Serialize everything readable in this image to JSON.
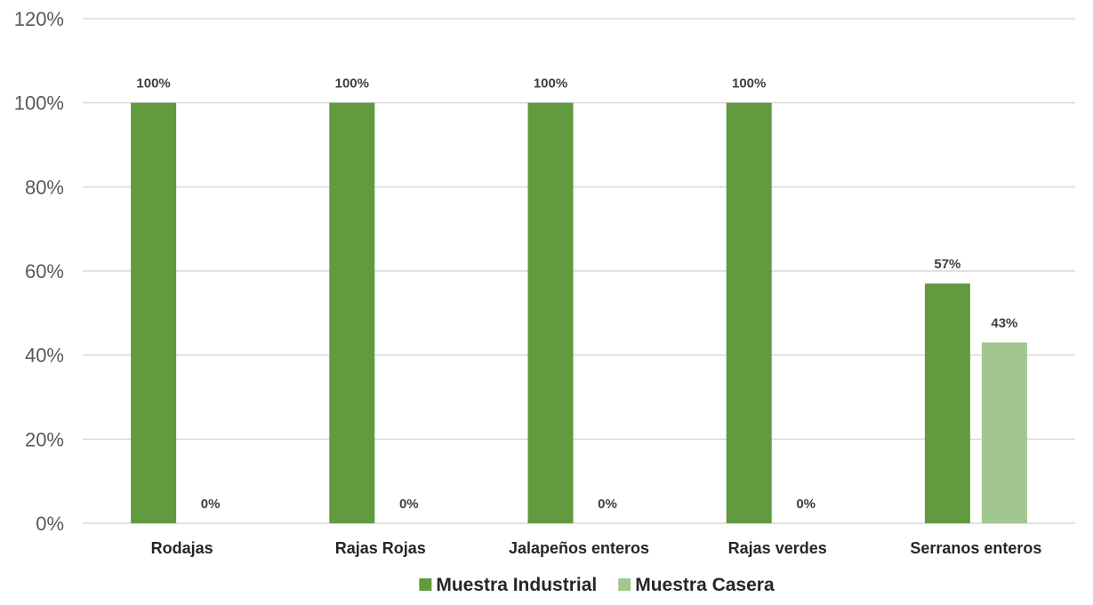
{
  "chart_data": {
    "type": "bar",
    "title": "",
    "xlabel": "",
    "ylabel": "",
    "categories": [
      "Rodajas",
      "Rajas Rojas",
      "Jalapeños enteros",
      "Rajas verdes",
      "Serranos enteros"
    ],
    "series": [
      {
        "name": "Muestra Industrial",
        "values": [
          100,
          100,
          100,
          100,
          57
        ],
        "labels": [
          "100%",
          "100%",
          "100%",
          "100%",
          "57%"
        ],
        "color": "#629a3f"
      },
      {
        "name": "Muestra Casera",
        "values": [
          0,
          0,
          0,
          0,
          43
        ],
        "labels": [
          "0%",
          "0%",
          "0%",
          "0%",
          "43%"
        ],
        "color": "#a2c68f"
      }
    ],
    "ylim": [
      0,
      120
    ],
    "yticks": [
      0,
      20,
      40,
      60,
      80,
      100,
      120
    ],
    "ytick_labels": [
      "0%",
      "20%",
      "40%",
      "60%",
      "80%",
      "100%",
      "120%"
    ],
    "grid": true,
    "legend_position": "bottom-center"
  }
}
